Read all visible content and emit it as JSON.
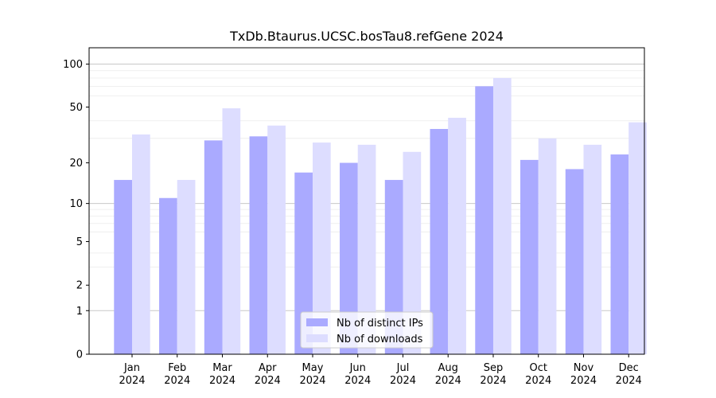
{
  "chart_data": {
    "type": "bar",
    "title": "TxDb.Btaurus.UCSC.bosTau8.refGene 2024",
    "xlabel": "",
    "ylabel": "",
    "y_scale": "symlog",
    "yticks": [
      0,
      1,
      2,
      5,
      10,
      20,
      50,
      100
    ],
    "ylim": [
      0,
      130
    ],
    "grid": true,
    "legend_position": "bottom-center",
    "categories": [
      [
        "Jan",
        "2024"
      ],
      [
        "Feb",
        "2024"
      ],
      [
        "Mar",
        "2024"
      ],
      [
        "Apr",
        "2024"
      ],
      [
        "May",
        "2024"
      ],
      [
        "Jun",
        "2024"
      ],
      [
        "Jul",
        "2024"
      ],
      [
        "Aug",
        "2024"
      ],
      [
        "Sep",
        "2024"
      ],
      [
        "Oct",
        "2024"
      ],
      [
        "Nov",
        "2024"
      ],
      [
        "Dec",
        "2024"
      ]
    ],
    "series": [
      {
        "name": "Nb of distinct IPs",
        "color": "#aaaaff",
        "values": [
          15,
          11,
          29,
          31,
          17,
          20,
          15,
          35,
          70,
          21,
          18,
          23
        ]
      },
      {
        "name": "Nb of downloads",
        "color": "#ddddff",
        "values": [
          32,
          15,
          49,
          37,
          28,
          27,
          24,
          42,
          80,
          30,
          27,
          39
        ]
      }
    ]
  }
}
